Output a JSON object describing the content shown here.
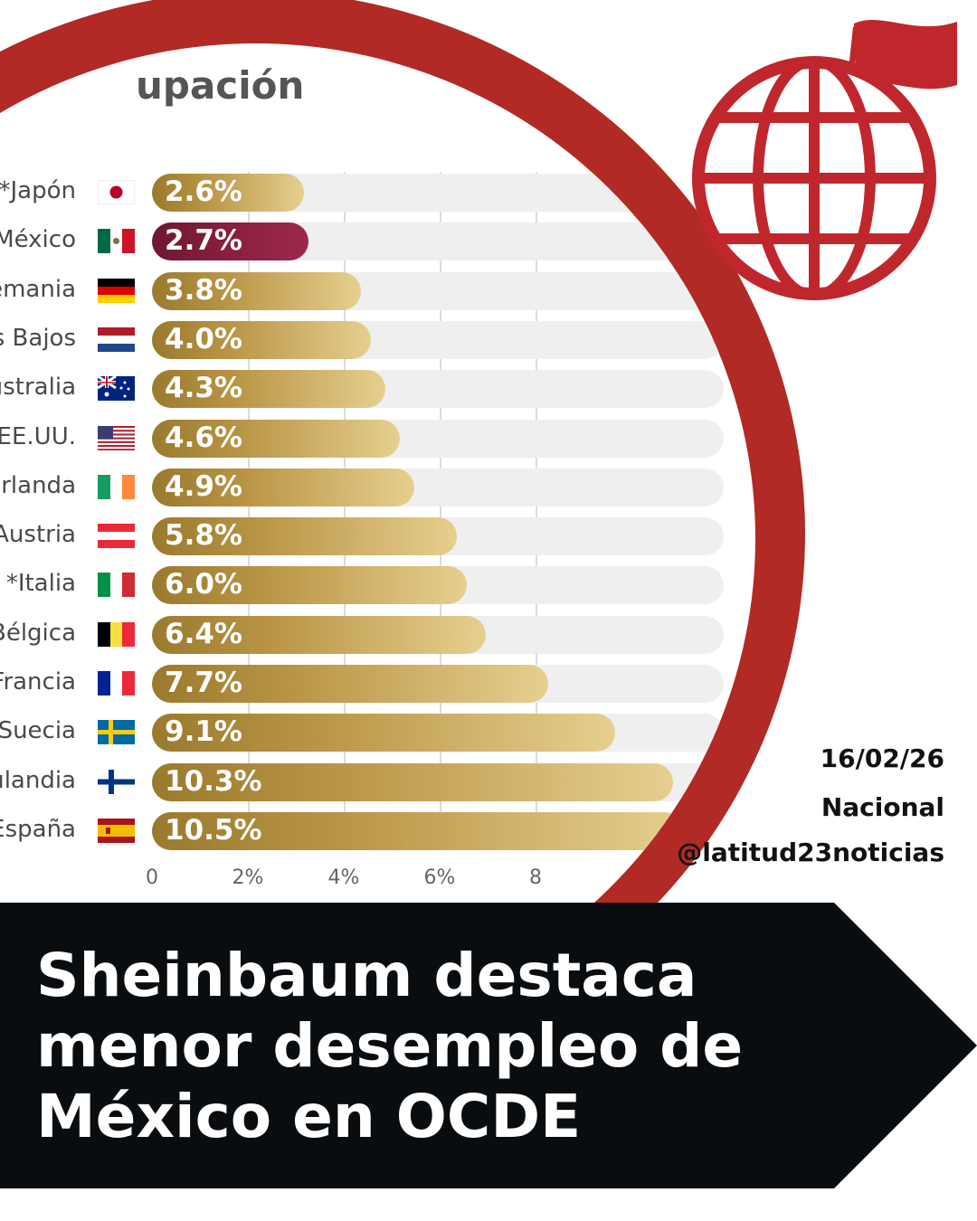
{
  "chart_data": {
    "type": "bar",
    "title": "upación",
    "categories": [
      "*Japón",
      "México",
      "emania",
      "s Bajos",
      "ıstralia",
      "EE.UU.",
      "rlanda",
      "Austria",
      "*Italia",
      "Bélgica",
      "Francia",
      "Suecia",
      "ılandia",
      "España"
    ],
    "values": [
      2.6,
      2.7,
      3.8,
      4.0,
      4.3,
      4.6,
      4.9,
      5.8,
      6.0,
      6.4,
      7.7,
      9.1,
      10.3,
      10.5
    ],
    "labels": [
      "2.6%",
      "2.7%",
      "3.8%",
      "4.0%",
      "4.3%",
      "4.6%",
      "4.9%",
      "5.8%",
      "6.0%",
      "6.4%",
      "7.7%",
      "9.1%",
      "10.3%",
      "10.5%"
    ],
    "highlight": "México",
    "highlight_color": "#8a1f3d",
    "bar_color": "#b99445",
    "flags": [
      "japan-flag",
      "mexico-flag",
      "germany-flag",
      "netherlands-flag",
      "australia-flag",
      "usa-flag",
      "ireland-flag",
      "austria-flag",
      "italy-flag",
      "belgium-flag",
      "france-flag",
      "sweden-flag",
      "finland-flag",
      "spain-flag"
    ],
    "x_ticks": [
      "0",
      "2%",
      "4%",
      "6%",
      "8"
    ],
    "xlim": [
      0,
      12
    ],
    "grid": true,
    "orientation": "horizontal"
  },
  "meta": {
    "date": "16/02/26",
    "section": "Nacional",
    "handle": "@latitud23noticias"
  },
  "headline": {
    "line1": "Sheinbaum destaca",
    "line2": "menor desempleo de",
    "line3": "México en OCDE"
  },
  "colors": {
    "ring": "#b12a26",
    "banner": "#0a0d10",
    "logo": "#c0272d"
  },
  "logo": {
    "icon": "globe-flag-icon"
  }
}
